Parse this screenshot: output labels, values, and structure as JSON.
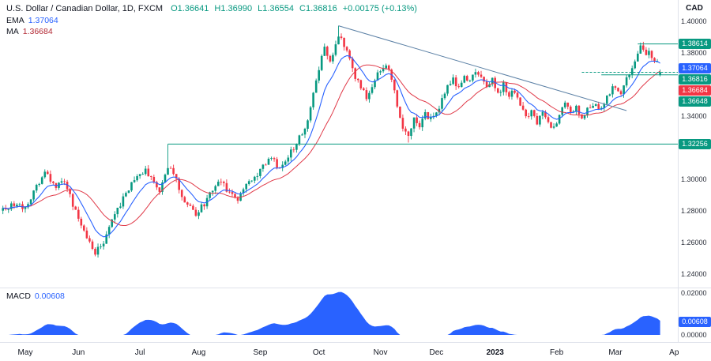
{
  "header": {
    "symbol": "U.S. Dollar / Canadian Dollar, 1D, FXCM",
    "open": "O1.36641",
    "high": "H1.36990",
    "low": "L1.36554",
    "close": "C1.36816",
    "change": "+0.00175 (+0.13%)",
    "ema_label": "EMA",
    "ema_value": "1.37064",
    "ma_label": "MA",
    "ma_value": "1.36684"
  },
  "macd": {
    "label": "MACD",
    "value": "0.00608"
  },
  "axis": {
    "currency": "CAD",
    "price_ticks": [
      1.4,
      1.38,
      1.34,
      1.3,
      1.28,
      1.26,
      1.24
    ],
    "macd_ticks": [
      0.02,
      0.0
    ],
    "badges": [
      {
        "value": 1.38614,
        "label": "1.38614",
        "color": "#089981"
      },
      {
        "value": 1.37064,
        "label": "1.37064",
        "color": "#2962ff"
      },
      {
        "value": 1.36816,
        "label": "1.36816",
        "color": "#089981"
      },
      {
        "value": 1.36684,
        "label": "1.36684",
        "color": "#f23645"
      },
      {
        "value": 1.36648,
        "label": "1.36648",
        "color": "#089981"
      }
    ],
    "level_badge": {
      "value": 1.32256,
      "label": "1.32256",
      "color": "#089981"
    },
    "macd_badge": {
      "value": 0.00608,
      "label": "0.00608",
      "color": "#2962ff"
    }
  },
  "months": [
    {
      "label": "May",
      "i": 0
    },
    {
      "label": "Jun",
      "i": 19
    },
    {
      "label": "Jul",
      "i": 41
    },
    {
      "label": "Aug",
      "i": 62
    },
    {
      "label": "Sep",
      "i": 84
    },
    {
      "label": "Oct",
      "i": 105
    },
    {
      "label": "Nov",
      "i": 127
    },
    {
      "label": "Dec",
      "i": 147
    },
    {
      "label": "2023",
      "i": 168
    },
    {
      "label": "Feb",
      "i": 190
    },
    {
      "label": "Mar",
      "i": 211
    },
    {
      "label": "Ap",
      "i": 232
    }
  ],
  "colors": {
    "up": "#089981",
    "down": "#f23645",
    "ema": "#2962ff",
    "ma": "#e03a49",
    "macd_fill": "#2962ff",
    "grid": "#e0e3eb",
    "text": "#131722"
  },
  "chart_data": {
    "type": "candlestick",
    "title": "U.S. Dollar / Canadian Dollar, 1D, FXCM",
    "legend": [
      "EMA",
      "MA",
      "MACD"
    ],
    "x_tick_labels": [
      "May",
      "Jun",
      "Jul",
      "Aug",
      "Sep",
      "Oct",
      "Nov",
      "Dec",
      "2023",
      "Feb",
      "Mar",
      "Ap"
    ],
    "y_range": [
      1.2345,
      1.403
    ],
    "y_tick_labels": [
      "1.40000",
      "1.38000",
      "1.34000",
      "1.30000",
      "1.28000",
      "1.26000",
      "1.24000"
    ],
    "last": {
      "open": 1.36641,
      "high": 1.3699,
      "low": 1.36554,
      "close": 1.36816,
      "change_abs": 0.00175,
      "change_pct": 0.13
    },
    "overlays": [
      {
        "name": "EMA",
        "last_value": 1.37064,
        "color": "#2962ff"
      },
      {
        "name": "MA",
        "last_value": 1.36684,
        "color": "#e03a49"
      }
    ],
    "indicator": {
      "name": "MACD",
      "last_value": 0.00608,
      "range": [
        0,
        0.022
      ],
      "tick_labels": [
        "0.02000",
        "0.00000"
      ]
    },
    "levels": [
      1.38614,
      1.37064,
      1.36816,
      1.36684,
      1.36648,
      1.32256
    ],
    "n_candles": 228,
    "lead_in": 8,
    "noise_seed": 7,
    "noise_amp": 0.004,
    "anchors": [
      [
        0,
        1.283
      ],
      [
        4,
        1.295
      ],
      [
        7,
        1.3035
      ],
      [
        11,
        1.296
      ],
      [
        14,
        1.299
      ],
      [
        17,
        1.284
      ],
      [
        20,
        1.272
      ],
      [
        23,
        1.26
      ],
      [
        25,
        1.254
      ],
      [
        28,
        1.261
      ],
      [
        31,
        1.273
      ],
      [
        34,
        1.284
      ],
      [
        37,
        1.295
      ],
      [
        40,
        1.302
      ],
      [
        43,
        1.306
      ],
      [
        46,
        1.299
      ],
      [
        48,
        1.293
      ],
      [
        50,
        1.303
      ],
      [
        52,
        1.308
      ],
      [
        54,
        1.299
      ],
      [
        56,
        1.29
      ],
      [
        58,
        1.284
      ],
      [
        61,
        1.277
      ],
      [
        64,
        1.285
      ],
      [
        67,
        1.294
      ],
      [
        70,
        1.299
      ],
      [
        73,
        1.292
      ],
      [
        76,
        1.287
      ],
      [
        79,
        1.296
      ],
      [
        82,
        1.302
      ],
      [
        85,
        1.308
      ],
      [
        88,
        1.314
      ],
      [
        91,
        1.307
      ],
      [
        94,
        1.315
      ],
      [
        97,
        1.323
      ],
      [
        100,
        1.333
      ],
      [
        102,
        1.346
      ],
      [
        104,
        1.362
      ],
      [
        106,
        1.38
      ],
      [
        107,
        1.383
      ],
      [
        109,
        1.376
      ],
      [
        111,
        1.386
      ],
      [
        112,
        1.392
      ],
      [
        114,
        1.385
      ],
      [
        116,
        1.376
      ],
      [
        118,
        1.365
      ],
      [
        120,
        1.358
      ],
      [
        122,
        1.353
      ],
      [
        124,
        1.36
      ],
      [
        126,
        1.368
      ],
      [
        128,
        1.372
      ],
      [
        129,
        1.374
      ],
      [
        131,
        1.364
      ],
      [
        133,
        1.348
      ],
      [
        135,
        1.334
      ],
      [
        137,
        1.329
      ],
      [
        139,
        1.339
      ],
      [
        141,
        1.334
      ],
      [
        143,
        1.342
      ],
      [
        145,
        1.338
      ],
      [
        147,
        1.343
      ],
      [
        149,
        1.35
      ],
      [
        151,
        1.359
      ],
      [
        153,
        1.364
      ],
      [
        155,
        1.358
      ],
      [
        157,
        1.366
      ],
      [
        159,
        1.362
      ],
      [
        161,
        1.37
      ],
      [
        163,
        1.364
      ],
      [
        165,
        1.358
      ],
      [
        167,
        1.363
      ],
      [
        169,
        1.355
      ],
      [
        171,
        1.36
      ],
      [
        173,
        1.354
      ],
      [
        175,
        1.357
      ],
      [
        177,
        1.346
      ],
      [
        179,
        1.34
      ],
      [
        181,
        1.344
      ],
      [
        183,
        1.337
      ],
      [
        185,
        1.341
      ],
      [
        187,
        1.335
      ],
      [
        189,
        1.333
      ],
      [
        191,
        1.342
      ],
      [
        193,
        1.347
      ],
      [
        195,
        1.342
      ],
      [
        197,
        1.346
      ],
      [
        199,
        1.337
      ],
      [
        201,
        1.344
      ],
      [
        203,
        1.348
      ],
      [
        205,
        1.344
      ],
      [
        207,
        1.35
      ],
      [
        209,
        1.356
      ],
      [
        211,
        1.36
      ],
      [
        213,
        1.356
      ],
      [
        215,
        1.363
      ],
      [
        217,
        1.372
      ],
      [
        219,
        1.38
      ],
      [
        220,
        1.384
      ],
      [
        221,
        1.383
      ],
      [
        222,
        1.379
      ],
      [
        223,
        1.381
      ],
      [
        224,
        1.377
      ],
      [
        225,
        1.373
      ],
      [
        226,
        1.374
      ],
      [
        227,
        1.36816
      ]
    ],
    "spikes": [
      {
        "i": 25,
        "low": 1.252
      },
      {
        "i": 51,
        "high": 1.32256
      },
      {
        "i": 112,
        "high": 1.3977
      },
      {
        "i": 137,
        "low": 1.3235
      },
      {
        "i": 220,
        "high": 1.38614
      }
    ],
    "drawings": [
      {
        "type": "trend",
        "i1": 112,
        "p1": 1.3977,
        "i2": 215,
        "p2": 1.3438,
        "color": "#5b80a5",
        "width": 1
      },
      {
        "type": "ray",
        "i": 51,
        "price": 1.32256,
        "color": "#089981",
        "width": 1
      },
      {
        "type": "ray",
        "i": 206,
        "price": 1.36648,
        "color": "#089981",
        "width": 1
      },
      {
        "type": "ray",
        "i": 219,
        "price": 1.38614,
        "color": "#089981",
        "width": 1
      },
      {
        "type": "priceline",
        "i": 199,
        "price": 1.36816,
        "color": "#089981",
        "width": 1,
        "dash": "3,2"
      }
    ]
  }
}
